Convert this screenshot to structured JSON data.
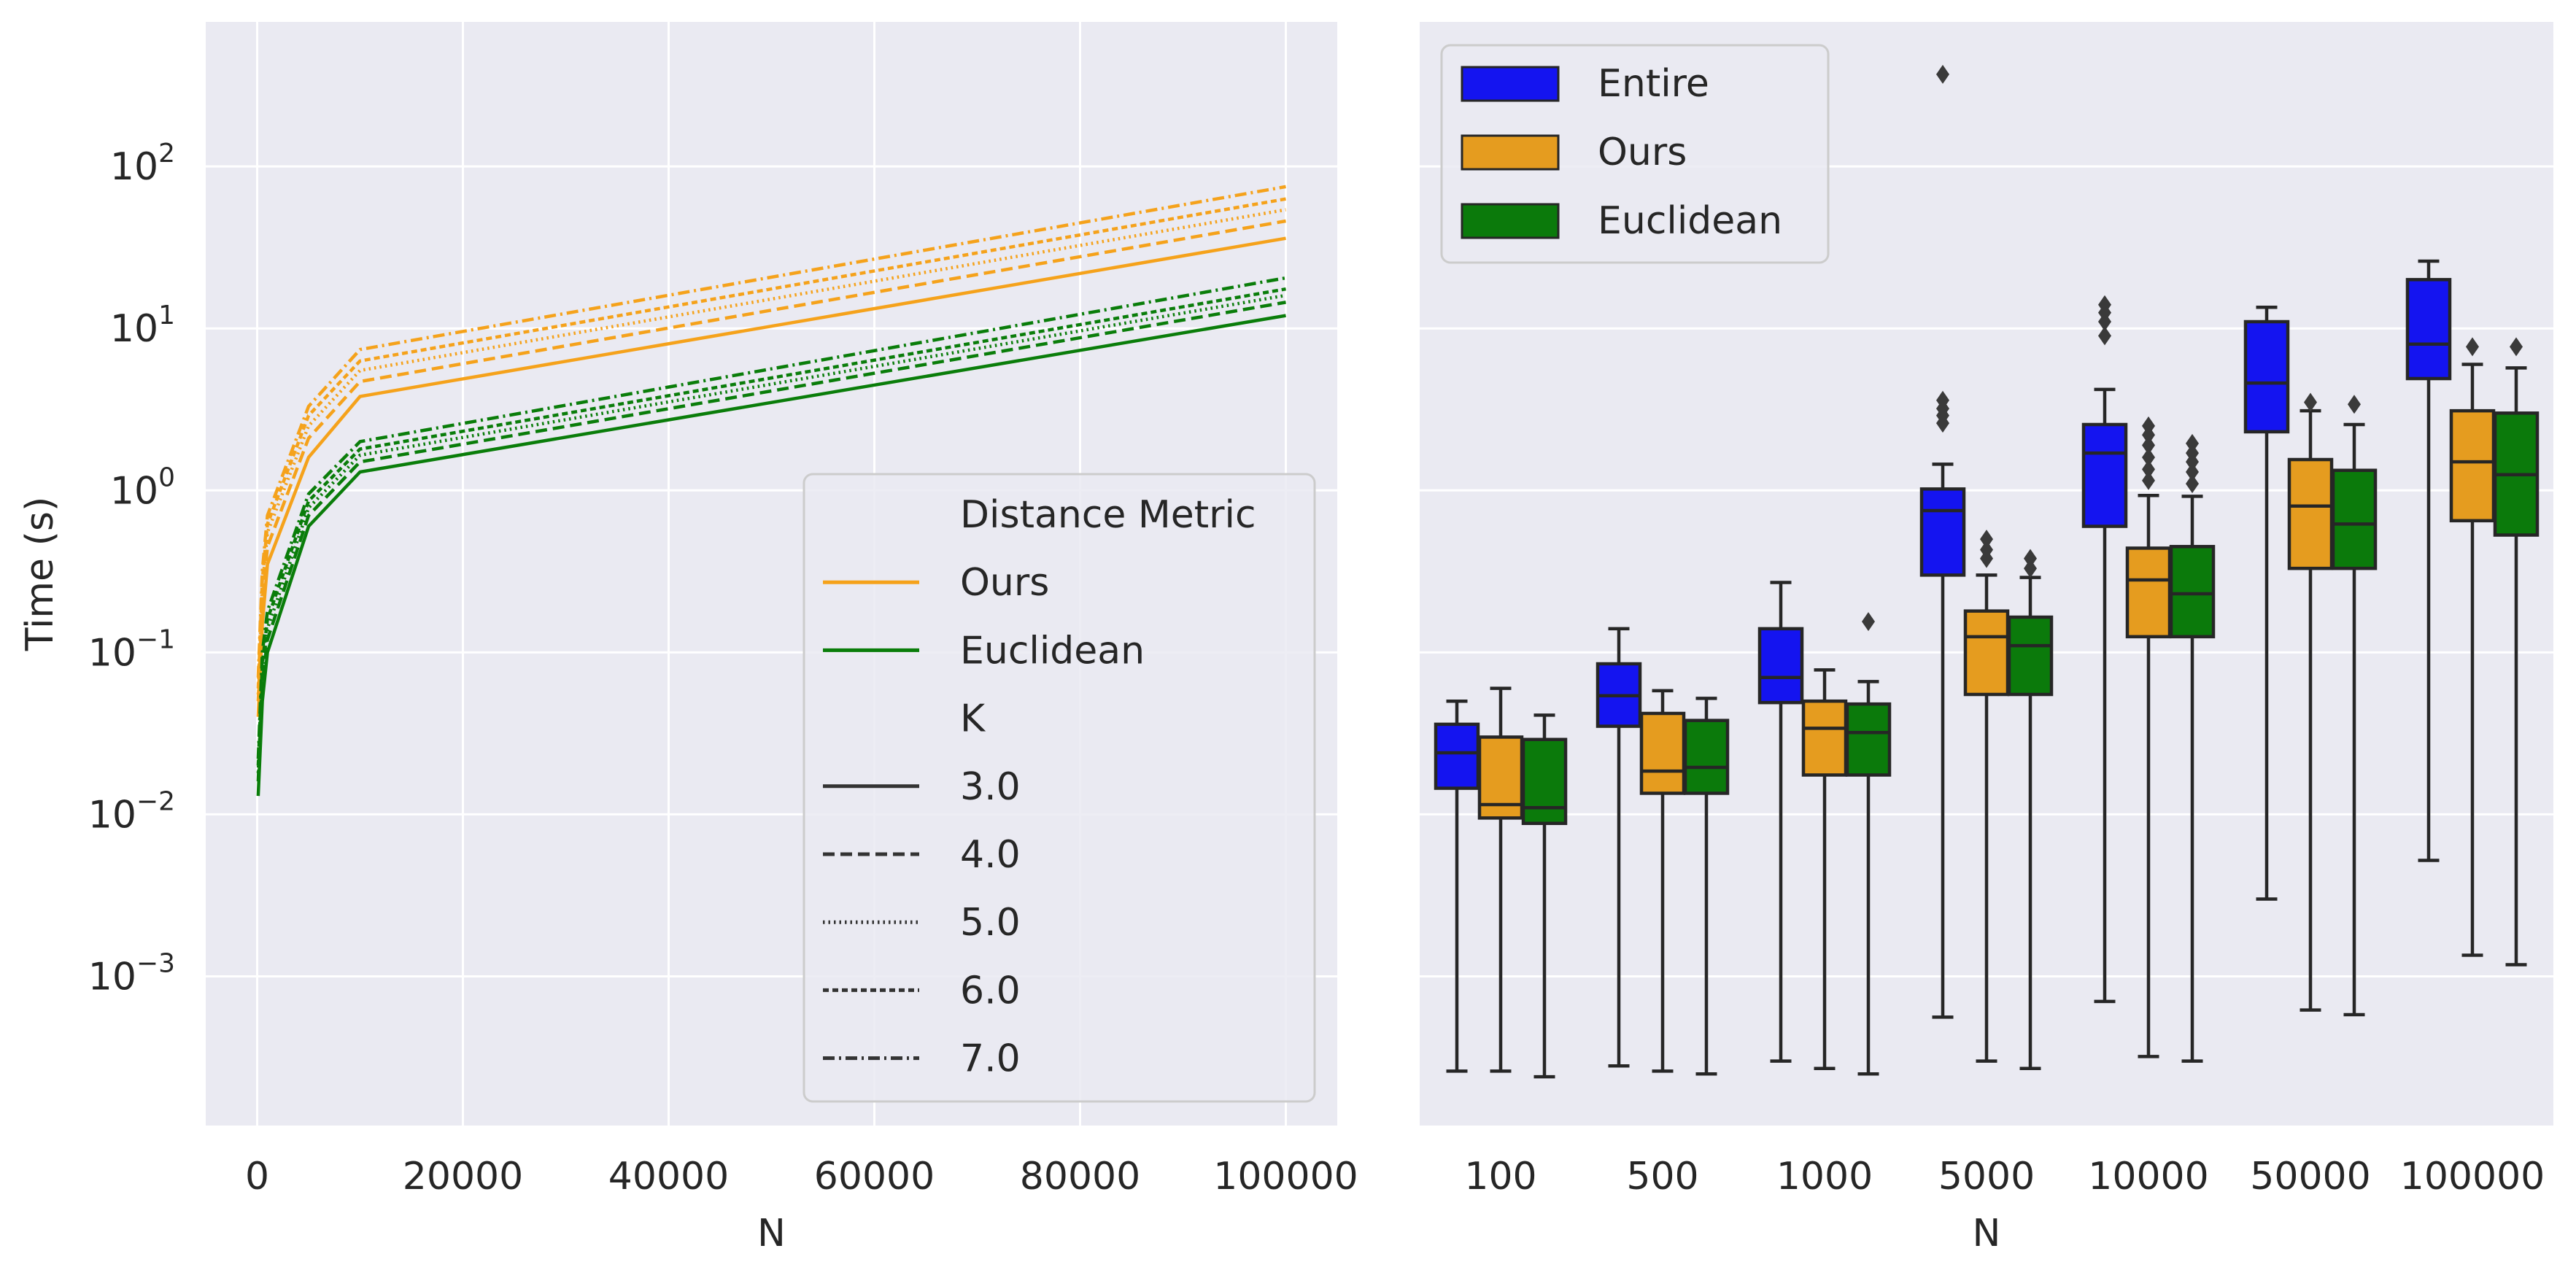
{
  "chart_data": [
    {
      "type": "line",
      "xlabel": "N",
      "ylabel": "Time (s)",
      "yscale": "log",
      "xlim": [
        -5000,
        105000
      ],
      "ylim": [
        0.00012,
        780
      ],
      "x_ticks": [
        0,
        20000,
        40000,
        60000,
        80000,
        100000
      ],
      "x_tick_labels": [
        "0",
        "20000",
        "40000",
        "60000",
        "80000",
        "100000"
      ],
      "y_ticks": [
        0.001,
        0.01,
        0.1,
        1,
        10,
        100
      ],
      "y_tick_labels": [
        {
          "base": "10",
          "exp": "−3"
        },
        {
          "base": "10",
          "exp": "−2"
        },
        {
          "base": "10",
          "exp": "−1"
        },
        {
          "base": "10",
          "exp": "0"
        },
        {
          "base": "10",
          "exp": "1"
        },
        {
          "base": "10",
          "exp": "2"
        }
      ],
      "grid": true,
      "legend": {
        "placement": "lower-right",
        "hue_title": "Distance Metric",
        "hue_entries": [
          {
            "label": "Ours",
            "color": "#f5a21b"
          },
          {
            "label": "Euclidean",
            "color": "#0a7d0a"
          }
        ],
        "style_title": "K",
        "style_entries": [
          {
            "label": "3.0",
            "dash": "solid"
          },
          {
            "label": "4.0",
            "dash": "dashed"
          },
          {
            "label": "5.0",
            "dash": "dotted"
          },
          {
            "label": "6.0",
            "dash": "densely-dashed"
          },
          {
            "label": "7.0",
            "dash": "dash-dot"
          }
        ]
      },
      "x": [
        100,
        500,
        1000,
        5000,
        10000,
        100000
      ],
      "series": [
        {
          "name": "Ours",
          "k": "3.0",
          "color": "#f5a21b",
          "dash": "solid",
          "values": [
            0.04,
            0.15,
            0.35,
            1.6,
            3.8,
            36
          ]
        },
        {
          "name": "Ours",
          "k": "4.0",
          "color": "#f5a21b",
          "dash": "dashed",
          "values": [
            0.05,
            0.2,
            0.45,
            2.1,
            4.7,
            46
          ]
        },
        {
          "name": "Ours",
          "k": "5.0",
          "color": "#f5a21b",
          "dash": "dotted",
          "values": [
            0.055,
            0.25,
            0.55,
            2.5,
            5.5,
            54
          ]
        },
        {
          "name": "Ours",
          "k": "6.0",
          "color": "#f5a21b",
          "dash": "densely-dashed",
          "values": [
            0.06,
            0.28,
            0.62,
            2.9,
            6.3,
            63
          ]
        },
        {
          "name": "Ours",
          "k": "7.0",
          "color": "#f5a21b",
          "dash": "dash-dot",
          "values": [
            0.07,
            0.32,
            0.7,
            3.3,
            7.4,
            75
          ]
        },
        {
          "name": "Euclidean",
          "k": "3.0",
          "color": "#0a7d0a",
          "dash": "solid",
          "values": [
            0.013,
            0.05,
            0.1,
            0.6,
            1.3,
            12
          ]
        },
        {
          "name": "Euclidean",
          "k": "4.0",
          "color": "#0a7d0a",
          "dash": "dashed",
          "values": [
            0.016,
            0.065,
            0.12,
            0.7,
            1.5,
            14.5
          ]
        },
        {
          "name": "Euclidean",
          "k": "5.0",
          "color": "#0a7d0a",
          "dash": "dotted",
          "values": [
            0.018,
            0.075,
            0.14,
            0.78,
            1.65,
            16
          ]
        },
        {
          "name": "Euclidean",
          "k": "6.0",
          "color": "#0a7d0a",
          "dash": "densely-dashed",
          "values": [
            0.02,
            0.085,
            0.16,
            0.86,
            1.8,
            17.5
          ]
        },
        {
          "name": "Euclidean",
          "k": "7.0",
          "color": "#0a7d0a",
          "dash": "dash-dot",
          "values": [
            0.022,
            0.1,
            0.18,
            0.95,
            2.0,
            20.5
          ]
        }
      ]
    },
    {
      "type": "box",
      "xlabel": "N",
      "ylabel": "",
      "yscale": "log",
      "ylim": [
        0.00012,
        780
      ],
      "categories": [
        "100",
        "500",
        "1000",
        "5000",
        "10000",
        "50000",
        "100000"
      ],
      "grid": true,
      "legend": {
        "placement": "upper-left",
        "entries": [
          {
            "label": "Entire",
            "color": "#1414f0"
          },
          {
            "label": "Ours",
            "color": "#e59c1f"
          },
          {
            "label": "Euclidean",
            "color": "#0b7a0b"
          }
        ]
      },
      "series": [
        {
          "name": "Entire",
          "color": "#1414f0",
          "boxes": [
            {
              "min": 0.00026,
              "q1": 0.0145,
              "median": 0.024,
              "q3": 0.036,
              "max": 0.05,
              "outliers": []
            },
            {
              "min": 0.00028,
              "q1": 0.035,
              "median": 0.054,
              "q3": 0.085,
              "max": 0.14,
              "outliers": []
            },
            {
              "min": 0.0003,
              "q1": 0.049,
              "median": 0.07,
              "q3": 0.14,
              "max": 0.27,
              "outliers": []
            },
            {
              "min": 0.00056,
              "q1": 0.3,
              "median": 0.75,
              "q3": 1.02,
              "max": 1.45,
              "outliers": [
                2.6,
                2.9,
                3.2,
                3.6,
                370
              ]
            },
            {
              "min": 0.0007,
              "q1": 0.6,
              "median": 1.7,
              "q3": 2.55,
              "max": 4.2,
              "outliers": [
                9,
                11,
                12.5,
                14
              ]
            },
            {
              "min": 0.003,
              "q1": 2.3,
              "median": 4.6,
              "q3": 11,
              "max": 13.5,
              "outliers": []
            },
            {
              "min": 0.0052,
              "q1": 4.9,
              "median": 8,
              "q3": 20,
              "max": 26,
              "outliers": []
            }
          ]
        },
        {
          "name": "Ours",
          "color": "#e59c1f",
          "boxes": [
            {
              "min": 0.00026,
              "q1": 0.0095,
              "median": 0.0115,
              "q3": 0.03,
              "max": 0.06,
              "outliers": []
            },
            {
              "min": 0.00026,
              "q1": 0.0135,
              "median": 0.0185,
              "q3": 0.042,
              "max": 0.058,
              "outliers": []
            },
            {
              "min": 0.00027,
              "q1": 0.0175,
              "median": 0.034,
              "q3": 0.05,
              "max": 0.078,
              "outliers": []
            },
            {
              "min": 0.0003,
              "q1": 0.055,
              "median": 0.125,
              "q3": 0.18,
              "max": 0.3,
              "outliers": [
                0.38,
                0.43,
                0.5
              ]
            },
            {
              "min": 0.00032,
              "q1": 0.125,
              "median": 0.28,
              "q3": 0.44,
              "max": 0.93,
              "outliers": [
                1.15,
                1.35,
                1.6,
                1.9,
                2.2,
                2.5
              ]
            },
            {
              "min": 0.00062,
              "q1": 0.33,
              "median": 0.8,
              "q3": 1.55,
              "max": 3.1,
              "outliers": [
                3.5
              ]
            },
            {
              "min": 0.00135,
              "q1": 0.65,
              "median": 1.5,
              "q3": 3.1,
              "max": 6,
              "outliers": [
                7.7
              ]
            }
          ]
        },
        {
          "name": "Euclidean",
          "color": "#0b7a0b",
          "boxes": [
            {
              "min": 0.00024,
              "q1": 0.0088,
              "median": 0.011,
              "q3": 0.029,
              "max": 0.041,
              "outliers": []
            },
            {
              "min": 0.00025,
              "q1": 0.0135,
              "median": 0.0195,
              "q3": 0.038,
              "max": 0.052,
              "outliers": []
            },
            {
              "min": 0.00025,
              "q1": 0.0175,
              "median": 0.032,
              "q3": 0.048,
              "max": 0.066,
              "outliers": [
                0.155
              ]
            },
            {
              "min": 0.00027,
              "q1": 0.055,
              "median": 0.11,
              "q3": 0.165,
              "max": 0.29,
              "outliers": [
                0.33,
                0.38
              ]
            },
            {
              "min": 0.0003,
              "q1": 0.125,
              "median": 0.23,
              "q3": 0.45,
              "max": 0.92,
              "outliers": [
                1.1,
                1.3,
                1.5,
                1.7,
                1.95
              ]
            },
            {
              "min": 0.00058,
              "q1": 0.33,
              "median": 0.62,
              "q3": 1.33,
              "max": 2.55,
              "outliers": [
                3.4
              ]
            },
            {
              "min": 0.00118,
              "q1": 0.53,
              "median": 1.25,
              "q3": 3,
              "max": 5.7,
              "outliers": [
                7.7
              ]
            }
          ]
        }
      ]
    }
  ]
}
